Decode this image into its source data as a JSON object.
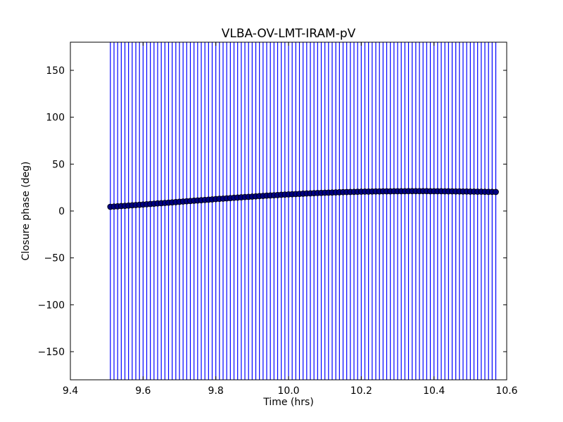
{
  "chart_data": {
    "type": "scatter",
    "title": "VLBA-OV-LMT-IRAM-pV",
    "xlabel": "Time (hrs)",
    "ylabel": "Closure phase (deg)",
    "xlim": [
      9.4,
      10.6
    ],
    "ylim": [
      -180,
      180
    ],
    "xticks": [
      9.4,
      9.6,
      9.8,
      10.0,
      10.2,
      10.4,
      10.6
    ],
    "xtick_labels": [
      "9.4",
      "9.6",
      "9.8",
      "10.0",
      "10.2",
      "10.4",
      "10.6"
    ],
    "yticks": [
      -150,
      -100,
      -50,
      0,
      50,
      100,
      150
    ],
    "ytick_labels": [
      "−150",
      "−100",
      "−50",
      "0",
      "50",
      "100",
      "150"
    ],
    "grid": false,
    "series": [
      {
        "color": "#0000ff",
        "marker_color": "#000080",
        "error_bars": "full range (±180 deg)",
        "x": [
          9.51,
          9.52,
          9.53,
          9.54,
          9.55,
          9.56,
          9.57,
          9.58,
          9.59,
          9.6,
          9.61,
          9.62,
          9.63,
          9.64,
          9.65,
          9.66,
          9.67,
          9.68,
          9.69,
          9.7,
          9.71,
          9.72,
          9.73,
          9.74,
          9.75,
          9.76,
          9.77,
          9.78,
          9.79,
          9.8,
          9.81,
          9.82,
          9.83,
          9.84,
          9.85,
          9.86,
          9.87,
          9.88,
          9.89,
          9.9,
          9.91,
          9.92,
          9.93,
          9.94,
          9.95,
          9.96,
          9.97,
          9.98,
          9.99,
          10.0,
          10.01,
          10.02,
          10.03,
          10.04,
          10.05,
          10.06,
          10.07,
          10.08,
          10.09,
          10.1,
          10.11,
          10.12,
          10.13,
          10.14,
          10.15,
          10.16,
          10.17,
          10.18,
          10.19,
          10.2,
          10.21,
          10.22,
          10.23,
          10.24,
          10.25,
          10.26,
          10.27,
          10.28,
          10.29,
          10.3,
          10.31,
          10.32,
          10.33,
          10.34,
          10.35,
          10.36,
          10.37,
          10.38,
          10.39,
          10.4,
          10.41,
          10.42,
          10.43,
          10.44,
          10.45,
          10.46,
          10.47,
          10.48,
          10.49,
          10.5,
          10.51,
          10.52,
          10.53,
          10.54,
          10.55,
          10.56,
          10.57
        ],
        "y": [
          4.5,
          4.8,
          5.0,
          5.3,
          5.5,
          5.8,
          6.1,
          6.4,
          6.6,
          6.9,
          7.2,
          7.5,
          7.8,
          8.1,
          8.3,
          8.6,
          8.9,
          9.2,
          9.5,
          9.8,
          10.1,
          10.4,
          10.7,
          11.0,
          11.2,
          11.5,
          11.8,
          12.1,
          12.4,
          12.7,
          13.0,
          13.2,
          13.5,
          13.8,
          14.1,
          14.3,
          14.6,
          14.9,
          15.1,
          15.4,
          15.6,
          15.9,
          16.1,
          16.4,
          16.6,
          16.8,
          17.0,
          17.3,
          17.5,
          17.7,
          17.9,
          18.1,
          18.3,
          18.5,
          18.7,
          18.8,
          19.0,
          19.2,
          19.3,
          19.5,
          19.6,
          19.7,
          19.9,
          20.0,
          20.1,
          20.2,
          20.3,
          20.4,
          20.5,
          20.6,
          20.7,
          20.7,
          20.8,
          20.9,
          20.9,
          21.0,
          21.0,
          21.0,
          21.1,
          21.1,
          21.1,
          21.1,
          21.2,
          21.2,
          21.2,
          21.2,
          21.2,
          21.2,
          21.1,
          21.1,
          21.1,
          21.1,
          21.0,
          21.0,
          21.0,
          20.9,
          20.9,
          20.8,
          20.8,
          20.7,
          20.7,
          20.6,
          20.6,
          20.5,
          20.4,
          20.4,
          20.3
        ]
      }
    ]
  }
}
